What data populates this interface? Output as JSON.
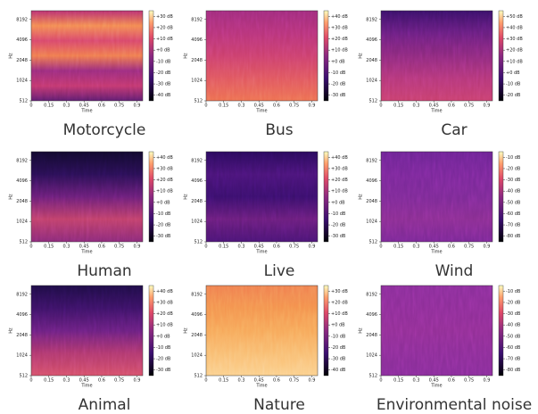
{
  "chart_data": [
    {
      "type": "spectrogram",
      "title": "Motorcycle",
      "xlabel": "Time",
      "ylabel": "Hz",
      "xlim": [
        0,
        0.95
      ],
      "xticks": [
        0,
        0.15,
        0.3,
        0.45,
        0.6,
        0.75,
        0.9
      ],
      "ylim": [
        512,
        11025
      ],
      "yscale": "log",
      "yticks": [
        512,
        1024,
        2048,
        4096,
        8192
      ],
      "clim": [
        -45,
        35
      ],
      "cticks": [
        {
          "value": 30,
          "label": "+30 dB"
        },
        {
          "value": 20,
          "label": "+20 dB"
        },
        {
          "value": 10,
          "label": "+10 dB"
        },
        {
          "value": 0,
          "label": "+0 dB"
        },
        {
          "value": -10,
          "label": "-10 dB"
        },
        {
          "value": -20,
          "label": "-20 dB"
        },
        {
          "value": -30,
          "label": "-30 dB"
        },
        {
          "value": -40,
          "label": "-40 dB"
        }
      ]
    },
    {
      "type": "spectrogram",
      "title": "Bus",
      "xlabel": "Time",
      "ylabel": "Hz",
      "xlim": [
        0,
        0.95
      ],
      "xticks": [
        0,
        0.15,
        0.3,
        0.45,
        0.6,
        0.75,
        0.9
      ],
      "ylim": [
        512,
        11025
      ],
      "yscale": "log",
      "yticks": [
        512,
        1024,
        2048,
        4096,
        8192
      ],
      "clim": [
        -35,
        45
      ],
      "cticks": [
        {
          "value": 40,
          "label": "+40 dB"
        },
        {
          "value": 30,
          "label": "+30 dB"
        },
        {
          "value": 20,
          "label": "+20 dB"
        },
        {
          "value": 10,
          "label": "+10 dB"
        },
        {
          "value": 0,
          "label": "+0 dB"
        },
        {
          "value": -10,
          "label": "-10 dB"
        },
        {
          "value": -20,
          "label": "-20 dB"
        },
        {
          "value": -30,
          "label": "-30 dB"
        }
      ]
    },
    {
      "type": "spectrogram",
      "title": "Car",
      "xlabel": "Time",
      "ylabel": "Hz",
      "xlim": [
        0,
        0.95
      ],
      "xticks": [
        0,
        0.15,
        0.3,
        0.45,
        0.6,
        0.75,
        0.9
      ],
      "ylim": [
        512,
        11025
      ],
      "yscale": "log",
      "yticks": [
        512,
        1024,
        2048,
        4096,
        8192
      ],
      "clim": [
        -25,
        55
      ],
      "cticks": [
        {
          "value": 50,
          "label": "+50 dB"
        },
        {
          "value": 40,
          "label": "+40 dB"
        },
        {
          "value": 30,
          "label": "+30 dB"
        },
        {
          "value": 20,
          "label": "+20 dB"
        },
        {
          "value": 10,
          "label": "+10 dB"
        },
        {
          "value": 0,
          "label": "+0 dB"
        },
        {
          "value": -10,
          "label": "-10 dB"
        },
        {
          "value": -20,
          "label": "-20 dB"
        }
      ]
    },
    {
      "type": "spectrogram",
      "title": "Human",
      "xlabel": "Time",
      "ylabel": "Hz",
      "xlim": [
        0,
        0.95
      ],
      "xticks": [
        0,
        0.15,
        0.3,
        0.45,
        0.6,
        0.75,
        0.9
      ],
      "ylim": [
        512,
        11025
      ],
      "yscale": "log",
      "yticks": [
        512,
        1024,
        2048,
        4096,
        8192
      ],
      "clim": [
        -35,
        45
      ],
      "cticks": [
        {
          "value": 40,
          "label": "+40 dB"
        },
        {
          "value": 30,
          "label": "+30 dB"
        },
        {
          "value": 20,
          "label": "+20 dB"
        },
        {
          "value": 10,
          "label": "+10 dB"
        },
        {
          "value": 0,
          "label": "+0 dB"
        },
        {
          "value": -10,
          "label": "-10 dB"
        },
        {
          "value": -20,
          "label": "-20 dB"
        },
        {
          "value": -30,
          "label": "-30 dB"
        }
      ]
    },
    {
      "type": "spectrogram",
      "title": "Live",
      "xlabel": "Time",
      "ylabel": "Hz",
      "xlim": [
        0,
        0.95
      ],
      "xticks": [
        0,
        0.15,
        0.3,
        0.45,
        0.6,
        0.75,
        0.9
      ],
      "ylim": [
        512,
        11025
      ],
      "yscale": "log",
      "yticks": [
        512,
        1024,
        2048,
        4096,
        8192
      ],
      "clim": [
        -35,
        45
      ],
      "cticks": [
        {
          "value": 40,
          "label": "+40 dB"
        },
        {
          "value": 30,
          "label": "+30 dB"
        },
        {
          "value": 20,
          "label": "+20 dB"
        },
        {
          "value": 10,
          "label": "+10 dB"
        },
        {
          "value": 0,
          "label": "+0 dB"
        },
        {
          "value": -10,
          "label": "-10 dB"
        },
        {
          "value": -20,
          "label": "-20 dB"
        },
        {
          "value": -30,
          "label": "-30 dB"
        }
      ]
    },
    {
      "type": "spectrogram",
      "title": "Wind",
      "xlabel": "Time",
      "ylabel": "Hz",
      "xlim": [
        0,
        0.95
      ],
      "xticks": [
        0,
        0.15,
        0.3,
        0.45,
        0.6,
        0.75,
        0.9
      ],
      "ylim": [
        512,
        11025
      ],
      "yscale": "log",
      "yticks": [
        512,
        1024,
        2048,
        4096,
        8192
      ],
      "clim": [
        -85,
        -5
      ],
      "cticks": [
        {
          "value": -10,
          "label": "-10 dB"
        },
        {
          "value": -20,
          "label": "-20 dB"
        },
        {
          "value": -30,
          "label": "-30 dB"
        },
        {
          "value": -40,
          "label": "-40 dB"
        },
        {
          "value": -50,
          "label": "-50 dB"
        },
        {
          "value": -60,
          "label": "-60 dB"
        },
        {
          "value": -70,
          "label": "-70 dB"
        },
        {
          "value": -80,
          "label": "-80 dB"
        }
      ]
    },
    {
      "type": "spectrogram",
      "title": "Animal",
      "xlabel": "Time",
      "ylabel": "Hz",
      "xlim": [
        0,
        0.95
      ],
      "xticks": [
        0,
        0.15,
        0.3,
        0.45,
        0.6,
        0.75,
        0.9
      ],
      "ylim": [
        512,
        11025
      ],
      "yscale": "log",
      "yticks": [
        512,
        1024,
        2048,
        4096,
        8192
      ],
      "clim": [
        -35,
        45
      ],
      "cticks": [
        {
          "value": 40,
          "label": "+40 dB"
        },
        {
          "value": 30,
          "label": "+30 dB"
        },
        {
          "value": 20,
          "label": "+20 dB"
        },
        {
          "value": 10,
          "label": "+10 dB"
        },
        {
          "value": 0,
          "label": "+0 dB"
        },
        {
          "value": -10,
          "label": "-10 dB"
        },
        {
          "value": -20,
          "label": "-20 dB"
        },
        {
          "value": -30,
          "label": "-30 dB"
        }
      ]
    },
    {
      "type": "spectrogram",
      "title": "Nature",
      "xlabel": "Time",
      "ylabel": "Hz",
      "xlim": [
        0,
        0.95
      ],
      "xticks": [
        0,
        0.15,
        0.3,
        0.45,
        0.6,
        0.75,
        0.9
      ],
      "ylim": [
        512,
        11025
      ],
      "yscale": "log",
      "yticks": [
        512,
        1024,
        2048,
        4096,
        8192
      ],
      "clim": [
        -45,
        35
      ],
      "cticks": [
        {
          "value": 30,
          "label": "+30 dB"
        },
        {
          "value": 20,
          "label": "+20 dB"
        },
        {
          "value": 10,
          "label": "+10 dB"
        },
        {
          "value": 0,
          "label": "+0 dB"
        },
        {
          "value": -10,
          "label": "-10 dB"
        },
        {
          "value": -20,
          "label": "-20 dB"
        },
        {
          "value": -30,
          "label": "-30 dB"
        },
        {
          "value": -40,
          "label": "-40 dB"
        }
      ]
    },
    {
      "type": "spectrogram",
      "title": "Environmental noise",
      "xlabel": "Time",
      "ylabel": "Hz",
      "xlim": [
        0,
        0.95
      ],
      "xticks": [
        0,
        0.15,
        0.3,
        0.45,
        0.6,
        0.75,
        0.9
      ],
      "ylim": [
        512,
        11025
      ],
      "yscale": "log",
      "yticks": [
        512,
        1024,
        2048,
        4096,
        8192
      ],
      "clim": [
        -85,
        -5
      ],
      "cticks": [
        {
          "value": -10,
          "label": "-10 dB"
        },
        {
          "value": -20,
          "label": "-20 dB"
        },
        {
          "value": -30,
          "label": "-30 dB"
        },
        {
          "value": -40,
          "label": "-40 dB"
        },
        {
          "value": -50,
          "label": "-50 dB"
        },
        {
          "value": -60,
          "label": "-60 dB"
        },
        {
          "value": -70,
          "label": "-70 dB"
        },
        {
          "value": -80,
          "label": "-80 dB"
        }
      ]
    }
  ]
}
